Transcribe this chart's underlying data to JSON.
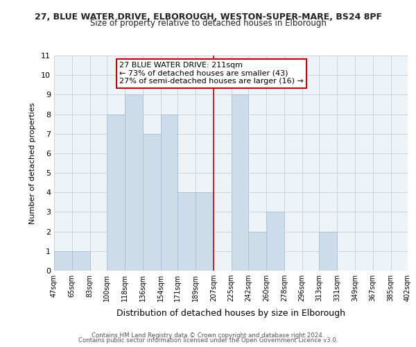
{
  "title1": "27, BLUE WATER DRIVE, ELBOROUGH, WESTON-SUPER-MARE, BS24 8PF",
  "title2": "Size of property relative to detached houses in Elborough",
  "xlabel": "Distribution of detached houses by size in Elborough",
  "ylabel": "Number of detached properties",
  "bar_edges": [
    47,
    65,
    83,
    100,
    118,
    136,
    154,
    171,
    189,
    207,
    225,
    242,
    260,
    278,
    296,
    313,
    331,
    349,
    367,
    385,
    402
  ],
  "bar_heights": [
    1,
    1,
    0,
    8,
    9,
    7,
    8,
    4,
    4,
    0,
    9,
    2,
    3,
    0,
    0,
    2,
    0,
    0,
    0,
    0
  ],
  "bar_color": "#ccdcea",
  "bar_edgecolor": "#a8c4d8",
  "vline_x": 207,
  "vline_color": "#cc0000",
  "ylim": [
    0,
    11
  ],
  "yticks": [
    0,
    1,
    2,
    3,
    4,
    5,
    6,
    7,
    8,
    9,
    10,
    11
  ],
  "annotation_title": "27 BLUE WATER DRIVE: 211sqm",
  "annotation_line1": "← 73% of detached houses are smaller (43)",
  "annotation_line2": "27% of semi-detached houses are larger (16) →",
  "annotation_box_color": "#ffffff",
  "annotation_box_edgecolor": "#cc0000",
  "footer1": "Contains HM Land Registry data © Crown copyright and database right 2024.",
  "footer2": "Contains public sector information licensed under the Open Government Licence v3.0.",
  "background_color": "#ffffff",
  "plot_bg_color": "#eef3f8",
  "grid_color": "#c8d4e0"
}
